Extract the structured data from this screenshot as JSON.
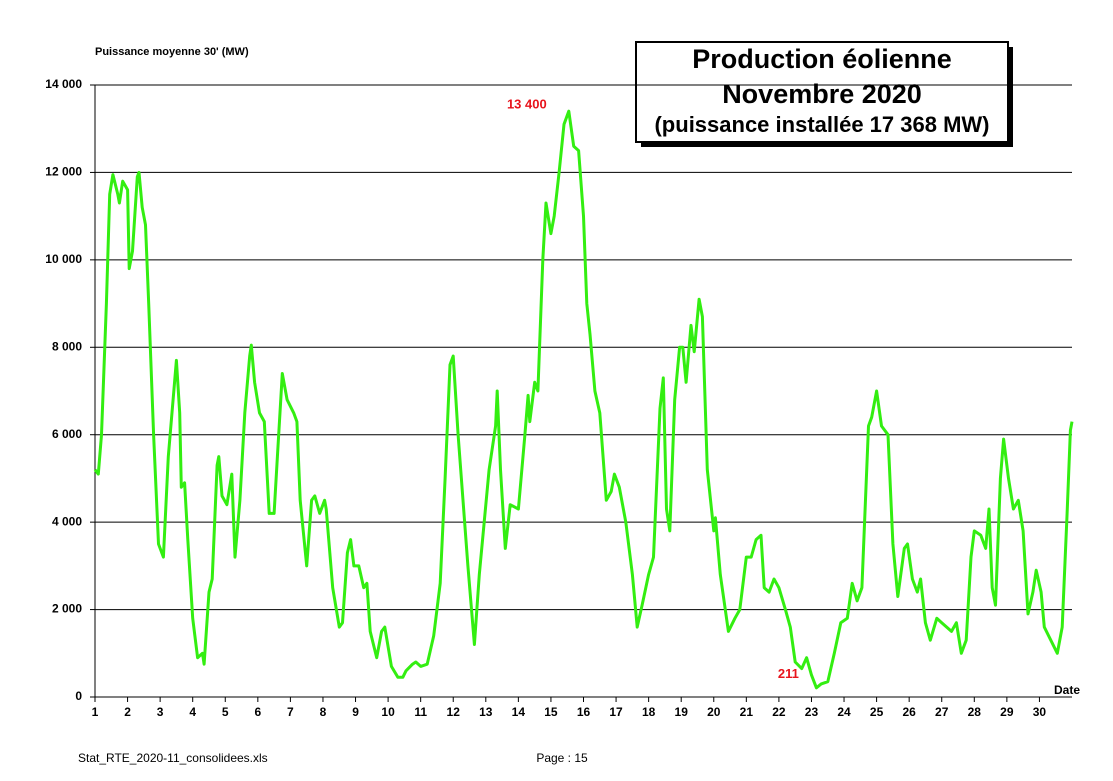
{
  "chart_data": {
    "type": "line",
    "title": [
      "Production éolienne",
      "Novembre 2020",
      "(puissance installée 17 368 MW)"
    ],
    "y_label": "Puissance moyenne 30'  (MW)",
    "x_label": "Date",
    "footer_left": "Stat_RTE_2020-11_consolidees.xls",
    "footer_center": "Page : 15",
    "color": "#33ee11",
    "grid": true,
    "xlim": [
      1,
      31
    ],
    "xticks": [
      1,
      2,
      3,
      4,
      5,
      6,
      7,
      8,
      9,
      10,
      11,
      12,
      13,
      14,
      15,
      16,
      17,
      18,
      19,
      20,
      21,
      22,
      23,
      24,
      25,
      26,
      27,
      28,
      29,
      30
    ],
    "ylim": [
      0,
      14000
    ],
    "yticks": [
      0,
      {
        "value": 2000,
        "label": "2 000"
      },
      {
        "value": 4000,
        "label": "4 000"
      },
      {
        "value": 6000,
        "label": "6 000"
      },
      {
        "value": 8000,
        "label": "8 000"
      },
      {
        "value": 10000,
        "label": "10 000"
      },
      {
        "value": 12000,
        "label": "12 000"
      },
      {
        "value": 14000,
        "label": "14 000"
      }
    ],
    "annotations": [
      {
        "label": "13 400",
        "value": 13400,
        "x": 15.55
      },
      {
        "label": "211",
        "value": 211,
        "x": 23.15
      }
    ],
    "x": [
      1.0,
      1.1,
      1.2,
      1.35,
      1.45,
      1.55,
      1.7,
      1.75,
      1.85,
      2.0,
      2.05,
      2.15,
      2.3,
      2.35,
      2.45,
      2.55,
      2.65,
      2.8,
      2.95,
      3.1,
      3.25,
      3.5,
      3.6,
      3.65,
      3.75,
      3.85,
      4.0,
      4.15,
      4.3,
      4.35,
      4.5,
      4.6,
      4.75,
      4.8,
      4.9,
      5.05,
      5.2,
      5.3,
      5.45,
      5.6,
      5.75,
      5.8,
      5.9,
      6.05,
      6.2,
      6.35,
      6.5,
      6.6,
      6.75,
      6.9,
      7.1,
      7.2,
      7.3,
      7.5,
      7.65,
      7.75,
      7.9,
      8.05,
      8.1,
      8.3,
      8.5,
      8.6,
      8.75,
      8.85,
      8.95,
      9.1,
      9.25,
      9.35,
      9.45,
      9.65,
      9.8,
      9.9,
      10.1,
      10.3,
      10.45,
      10.55,
      10.75,
      10.85,
      11.0,
      11.2,
      11.4,
      11.6,
      11.75,
      11.9,
      12.0,
      12.15,
      12.3,
      12.45,
      12.65,
      12.8,
      12.95,
      13.1,
      13.3,
      13.35,
      13.45,
      13.6,
      13.75,
      14.0,
      14.2,
      14.3,
      14.35,
      14.5,
      14.6,
      14.75,
      14.85,
      15.0,
      15.1,
      15.25,
      15.4,
      15.55,
      15.7,
      15.85,
      16.0,
      16.1,
      16.2,
      16.35,
      16.5,
      16.7,
      16.85,
      16.95,
      17.1,
      17.3,
      17.5,
      17.65,
      17.8,
      18.0,
      18.15,
      18.35,
      18.45,
      18.55,
      18.65,
      18.8,
      18.95,
      19.05,
      19.15,
      19.3,
      19.4,
      19.55,
      19.65,
      19.8,
      20.0,
      20.05,
      20.2,
      20.45,
      20.65,
      20.8,
      21.0,
      21.15,
      21.3,
      21.45,
      21.55,
      21.7,
      21.85,
      22.0,
      22.2,
      22.35,
      22.5,
      22.7,
      22.85,
      23.0,
      23.15,
      23.3,
      23.5,
      23.7,
      23.9,
      24.1,
      24.25,
      24.4,
      24.55,
      24.75,
      24.85,
      25.0,
      25.15,
      25.35,
      25.5,
      25.65,
      25.85,
      25.95,
      26.1,
      26.25,
      26.35,
      26.5,
      26.65,
      26.85,
      27.0,
      27.3,
      27.45,
      27.6,
      27.75,
      27.9,
      28.0,
      28.2,
      28.35,
      28.45,
      28.55,
      28.65,
      28.8,
      28.9,
      29.05,
      29.2,
      29.35,
      29.5,
      29.65,
      29.8,
      29.9,
      30.05,
      30.15,
      30.35,
      30.55,
      30.7,
      30.85,
      30.95,
      31.0
    ],
    "values": [
      5200,
      5100,
      6000,
      9000,
      11500,
      11950,
      11500,
      11300,
      11800,
      11600,
      9800,
      10200,
      11900,
      12000,
      11200,
      10800,
      9000,
      6000,
      3500,
      3200,
      5500,
      7700,
      6500,
      4800,
      4900,
      3600,
      1800,
      900,
      1000,
      750,
      2400,
      2700,
      5300,
      5500,
      4600,
      4400,
      5100,
      3200,
      4500,
      6500,
      7800,
      8050,
      7200,
      6500,
      6300,
      4200,
      4200,
      5500,
      7400,
      6800,
      6500,
      6300,
      4500,
      3000,
      4500,
      4600,
      4200,
      4500,
      4300,
      2500,
      1600,
      1700,
      3300,
      3600,
      3000,
      3000,
      2500,
      2600,
      1500,
      900,
      1500,
      1600,
      700,
      450,
      450,
      600,
      750,
      800,
      700,
      750,
      1400,
      2600,
      5000,
      7600,
      7800,
      6000,
      4500,
      3000,
      1200,
      2800,
      4000,
      5200,
      6200,
      7000,
      5200,
      3400,
      4400,
      4300,
      6000,
      6900,
      6300,
      7200,
      7000,
      10000,
      11300,
      10600,
      11000,
      12000,
      13100,
      13400,
      12600,
      12500,
      11000,
      9000,
      8300,
      7000,
      6500,
      4500,
      4700,
      5100,
      4800,
      4000,
      2800,
      1600,
      2100,
      2800,
      3200,
      6600,
      7300,
      4300,
      3800,
      6800,
      8000,
      8000,
      7200,
      8500,
      7900,
      9100,
      8700,
      5200,
      3800,
      4100,
      2800,
      1500,
      1800,
      2000,
      3200,
      3200,
      3600,
      3700,
      2500,
      2400,
      2700,
      2500,
      2000,
      1600,
      800,
      650,
      900,
      500,
      211,
      300,
      350,
      1000,
      1700,
      1800,
      2600,
      2200,
      2500,
      6200,
      6400,
      7000,
      6200,
      6000,
      3500,
      2300,
      3400,
      3500,
      2700,
      2400,
      2700,
      1700,
      1300,
      1800,
      1700,
      1500,
      1700,
      1000,
      1300,
      3200,
      3800,
      3700,
      3400,
      4300,
      2500,
      2100,
      5000,
      5900,
      5000,
      4300,
      4500,
      3800,
      1900,
      2400,
      2900,
      2400,
      1600,
      1300,
      1000,
      1600,
      4200,
      6100,
      6300
    ]
  }
}
